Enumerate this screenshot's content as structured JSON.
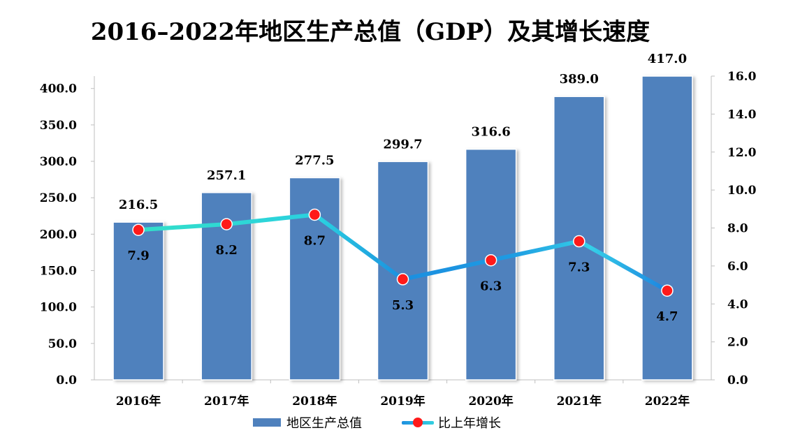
{
  "chart_data": {
    "type": "bar",
    "title": "2016–2022年地区生产总值（GDP）及其增长速度",
    "categories": [
      "2016年",
      "2017年",
      "2018年",
      "2019年",
      "2020年",
      "2021年",
      "2022年"
    ],
    "series": [
      {
        "name": "地区生产总值",
        "type": "bar",
        "axis": "left",
        "values": [
          216.5,
          257.1,
          277.5,
          299.7,
          316.6,
          389.0,
          417.0
        ],
        "labels": [
          "216.5",
          "257.1",
          "277.5",
          "299.7",
          "316.6",
          "389.0",
          "417.0"
        ],
        "color": "#4f81bd"
      },
      {
        "name": "比上年增长",
        "type": "line",
        "axis": "right",
        "values": [
          7.9,
          8.2,
          8.7,
          5.3,
          6.3,
          7.3,
          4.7
        ],
        "labels": [
          "7.9",
          "8.2",
          "8.7",
          "5.3",
          "6.3",
          "7.3",
          "4.7"
        ],
        "color": "#1fa0e0",
        "marker_color": "#ff1a1a"
      }
    ],
    "y_left": {
      "range": [
        0,
        400
      ],
      "ticks": [
        "0.0",
        "50.0",
        "100.0",
        "150.0",
        "200.0",
        "250.0",
        "300.0",
        "350.0",
        "400.0"
      ]
    },
    "y_right": {
      "range": [
        0,
        16
      ],
      "ticks": [
        "0.0",
        "2.0",
        "4.0",
        "6.0",
        "8.0",
        "10.0",
        "12.0",
        "14.0",
        "16.0"
      ]
    },
    "grid": false,
    "legend_position": "bottom"
  }
}
